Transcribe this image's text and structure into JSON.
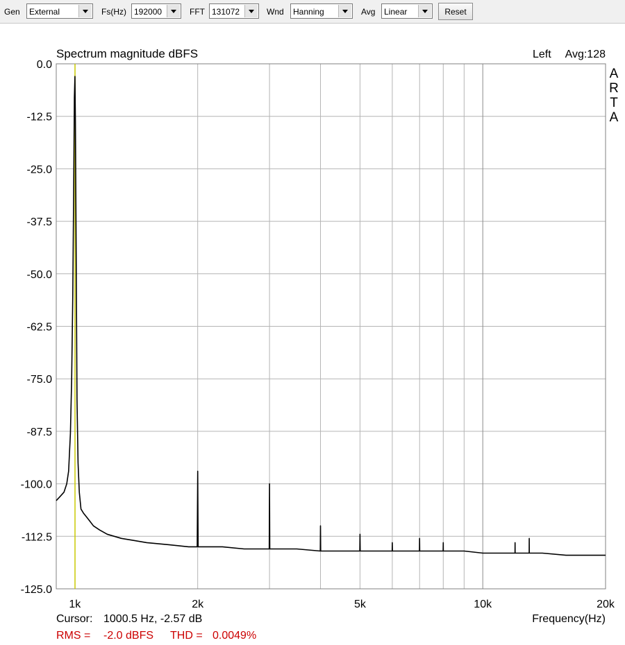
{
  "toolbar": {
    "gen": {
      "label": "Gen",
      "value": "External"
    },
    "fs": {
      "label": "Fs(Hz)",
      "value": "192000"
    },
    "fft": {
      "label": "FFT",
      "value": "131072"
    },
    "wnd": {
      "label": "Wnd",
      "value": "Hanning"
    },
    "avg": {
      "label": "Avg",
      "value": "Linear"
    },
    "reset_label": "Reset"
  },
  "chart_data": {
    "type": "line",
    "title": "Spectrum magnitude dBFS",
    "channel_label": "Left",
    "avg_label": "Avg:128",
    "brand": "ARTA",
    "xlabel": "Frequency(Hz)",
    "ylabel": "",
    "x_scale": "log",
    "xlim": [
      900,
      20000
    ],
    "ylim": [
      -125,
      0
    ],
    "y_ticks": [
      0,
      -12.5,
      -25,
      -37.5,
      -50,
      -62.5,
      -75,
      -87.5,
      -100,
      -112.5,
      -125
    ],
    "y_tick_labels": [
      "0.0",
      "-12.5",
      "-25.0",
      "-37.5",
      "-50.0",
      "-62.5",
      "-75.0",
      "-87.5",
      "-100.0",
      "-112.5",
      "-125.0"
    ],
    "x_ticks": [
      1000,
      2000,
      5000,
      10000,
      20000
    ],
    "x_tick_labels": [
      "1k",
      "2k",
      "5k",
      "10k",
      "20k"
    ],
    "x_grid": [
      2000,
      3000,
      4000,
      5000,
      6000,
      7000,
      8000,
      9000,
      10000
    ],
    "grid": true,
    "cursor": {
      "freq": 1000.5,
      "label": "Cursor:",
      "readout": "1000.5 Hz, -2.57 dB"
    },
    "rms": {
      "label": "RMS =",
      "value": "-2.0 dBFS"
    },
    "thd": {
      "label": "THD =",
      "value": "0.0049%"
    },
    "colors": {
      "trace": "#000000",
      "cursor": "#c8c800",
      "grid": "#b4b4b4",
      "status": "#cc0000"
    },
    "series": [
      {
        "x": [
          900,
          920,
          940,
          955,
          965,
          975,
          982,
          988,
          993,
          997,
          1000,
          1003,
          1007,
          1012,
          1018,
          1025,
          1035,
          1050,
          1070,
          1090,
          1110,
          1150,
          1200,
          1300,
          1400,
          1500,
          1700,
          1900,
          1995,
          2000,
          2005,
          2300,
          2600,
          2995,
          3000,
          3005,
          3500,
          3995,
          4000,
          4005,
          4500,
          4995,
          5000,
          5005,
          5500,
          5995,
          6000,
          6005,
          6500,
          6995,
          7000,
          7005,
          7500,
          7995,
          8000,
          8005,
          9000,
          10000,
          11000,
          11995,
          12000,
          12005,
          12995,
          13000,
          13005,
          14000,
          16000,
          18000,
          20000
        ],
        "y": [
          -104,
          -103,
          -102,
          -100,
          -97,
          -88,
          -75,
          -55,
          -30,
          -8,
          -3,
          -14,
          -45,
          -80,
          -95,
          -102,
          -106,
          -107,
          -108,
          -109,
          -110,
          -111,
          -112,
          -113,
          -113.5,
          -114,
          -114.5,
          -115,
          -115,
          -97,
          -115,
          -115,
          -115.5,
          -115.5,
          -100,
          -115.5,
          -115.5,
          -116,
          -110,
          -116,
          -116,
          -116,
          -112,
          -116,
          -116,
          -116,
          -114,
          -116,
          -116,
          -116,
          -113,
          -116,
          -116,
          -116,
          -114,
          -116,
          -116,
          -116.5,
          -116.5,
          -116.5,
          -114,
          -116.5,
          -116.5,
          -113,
          -116.5,
          -116.5,
          -117,
          -117,
          -117
        ]
      }
    ]
  }
}
